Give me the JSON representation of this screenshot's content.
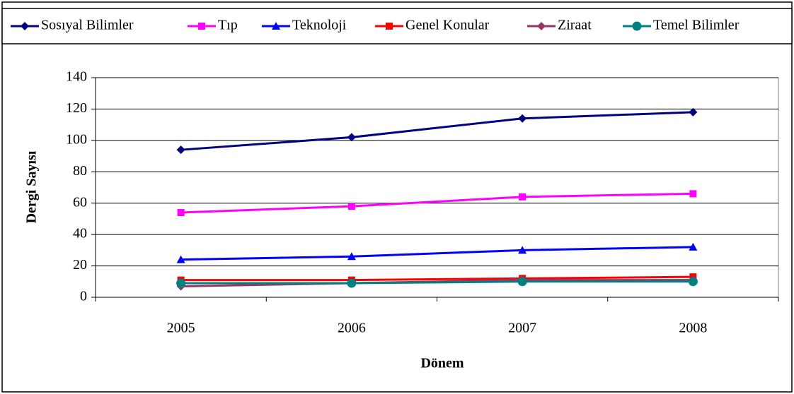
{
  "chart_data": {
    "type": "line",
    "x_label": "Dönem",
    "y_label": "Dergi Sayısı",
    "categories": [
      "2005",
      "2006",
      "2007",
      "2008"
    ],
    "series": [
      {
        "name": "Sosıyal Bilimler",
        "color": "#000080",
        "marker": "diamond",
        "values": [
          94,
          102,
          114,
          118
        ]
      },
      {
        "name": "Tıp",
        "color": "#ff00ff",
        "marker": "square",
        "values": [
          54,
          58,
          64,
          66
        ]
      },
      {
        "name": "Teknoloji",
        "color": "#0000ff",
        "marker": "triangle",
        "values": [
          24,
          26,
          30,
          32
        ]
      },
      {
        "name": "Genel Konular",
        "color": "#ff0000",
        "marker": "square",
        "values": [
          11,
          11,
          12,
          13
        ]
      },
      {
        "name": "Ziraat",
        "color": "#993366",
        "marker": "diamond",
        "values": [
          7,
          9,
          11,
          11
        ]
      },
      {
        "name": "Temel Bilimler",
        "color": "#008080",
        "marker": "circle",
        "values": [
          9,
          9,
          10,
          10
        ]
      }
    ],
    "ylim": [
      0,
      140
    ],
    "yticks": [
      0,
      20,
      40,
      60,
      80,
      100,
      120,
      140
    ],
    "grid": true,
    "legend": "top"
  }
}
